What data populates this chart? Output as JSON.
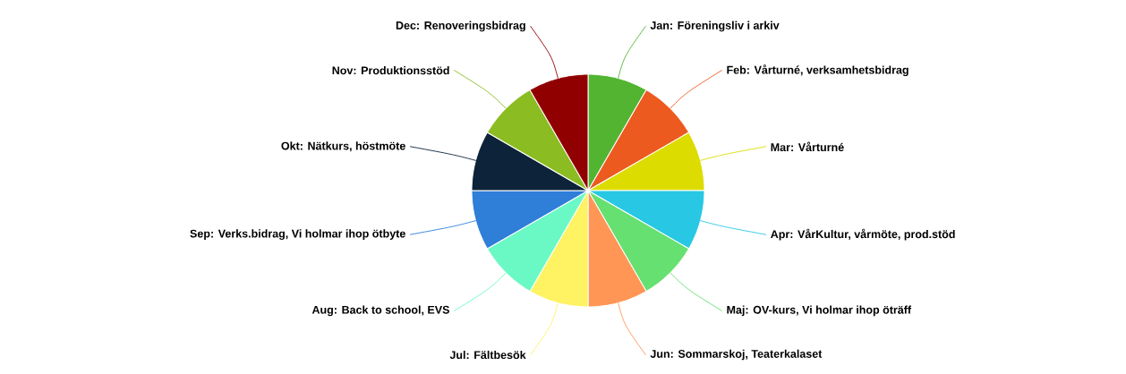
{
  "chart_data": {
    "type": "pie",
    "categories": [
      "Jan: Föreningsliv i arkiv",
      "Feb: Vårturné, verksamhetsbidrag",
      "Mar: Vårturné",
      "Apr: VårKultur, vårmöte, prod.stöd",
      "Maj: OV-kurs, Vi holmar ihop öträff",
      "Jun: Sommarskoj, Teaterkalaset",
      "Jul: Fältbesök",
      "Aug: Back to school, EVS",
      "Sep: Verks.bidrag, Vi holmar ihop ötbyte",
      "Okt: Nätkurs, höstmöte",
      "Nov: Produktionsstöd",
      "Dec: Renoveringsbidrag"
    ],
    "values": [
      8.333333333333334,
      8.333333333333334,
      8.333333333333334,
      8.333333333333334,
      8.333333333333334,
      8.333333333333334,
      8.333333333333334,
      8.333333333333334,
      8.333333333333334,
      8.333333333333334,
      8.333333333333334,
      8.333333333333334
    ],
    "colors": [
      "#53b432",
      "#ec5a20",
      "#dcdc00",
      "#28c8e4",
      "#66e070",
      "#ff9655",
      "#fff263",
      "#6af9c4",
      "#2f7ed8",
      "#0d233a",
      "#8bbc21",
      "#910000"
    ]
  }
}
